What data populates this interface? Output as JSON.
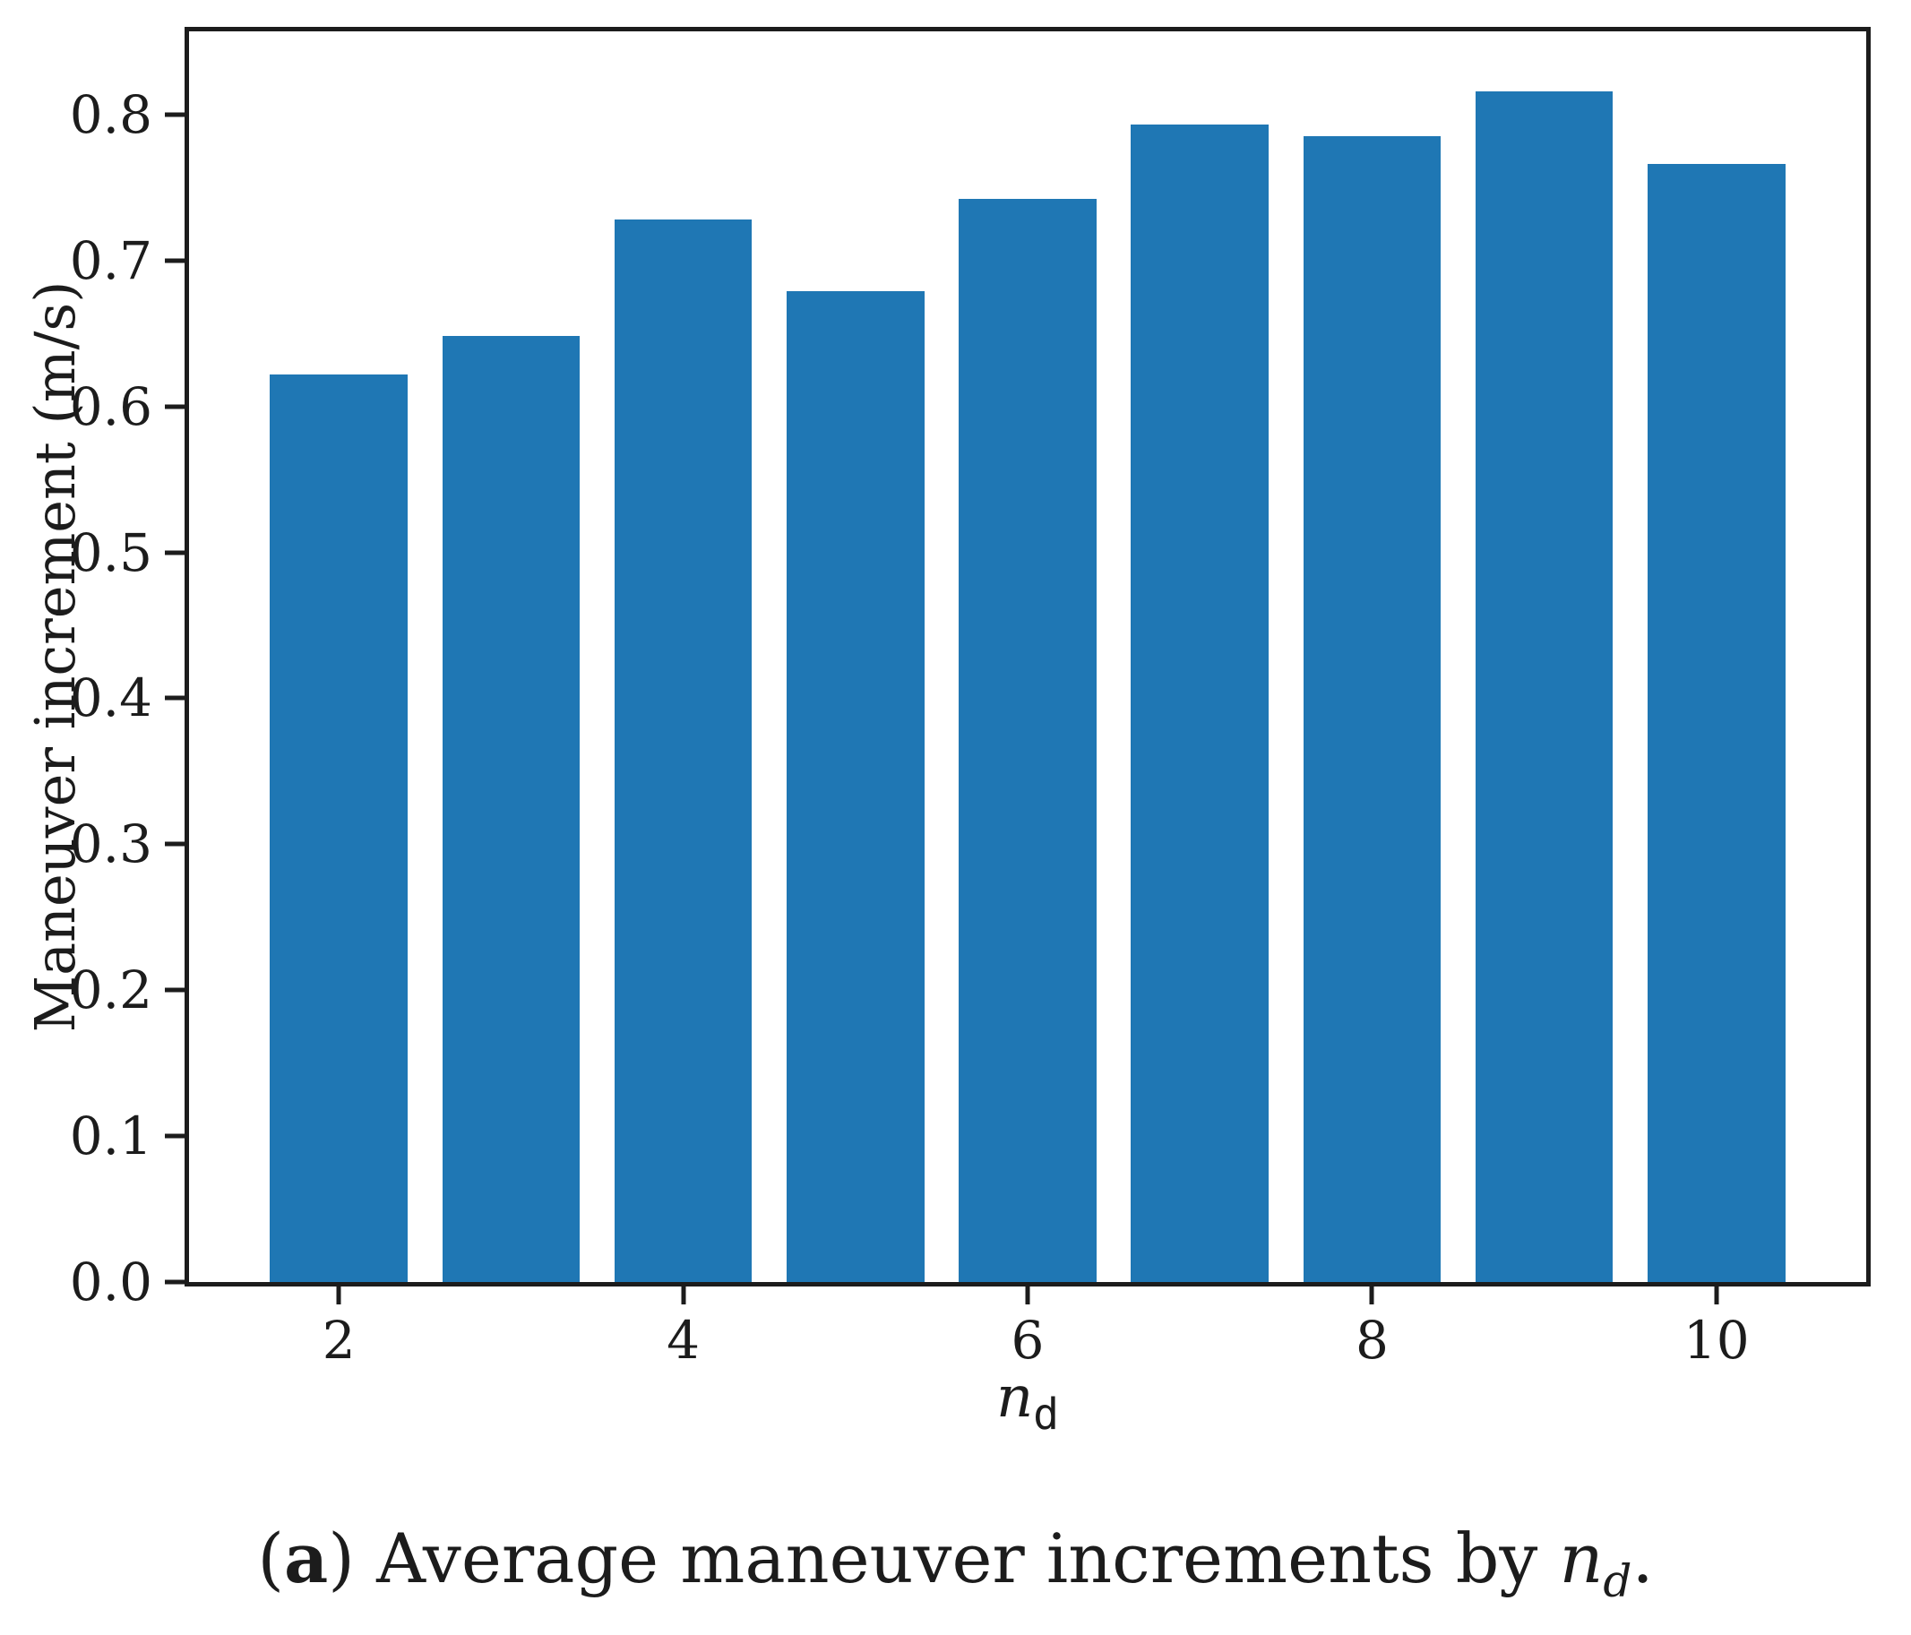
{
  "figure": {
    "background": "#ffffff",
    "text_color": "#1c1c1c",
    "axis_color": "#1c1c1c"
  },
  "chart_data": {
    "type": "bar",
    "title": "",
    "xlabel": "n_d",
    "xlabel_parts": {
      "var": "n",
      "sub": "d"
    },
    "ylabel": "Maneuver increment (m/s)",
    "categories": [
      2,
      3,
      4,
      5,
      6,
      7,
      8,
      9,
      10
    ],
    "values": [
      0.622,
      0.648,
      0.728,
      0.679,
      0.742,
      0.793,
      0.785,
      0.816,
      0.766
    ],
    "bar_color": "#1f77b4",
    "bar_width_units": 0.8,
    "xlim": [
      1.13,
      10.87
    ],
    "ylim": [
      0,
      0.857
    ],
    "x_ticks": [
      2,
      4,
      6,
      8,
      10
    ],
    "y_ticks": [
      "0.0",
      "0.1",
      "0.2",
      "0.3",
      "0.4",
      "0.5",
      "0.6",
      "0.7",
      "0.8"
    ],
    "grid": false,
    "legend_position": "none"
  },
  "caption": {
    "open_paren": "(",
    "index": "a",
    "close_paren": ")",
    "text": " Average maneuver increments by ",
    "var": "n",
    "sub": "d",
    "period": "."
  }
}
